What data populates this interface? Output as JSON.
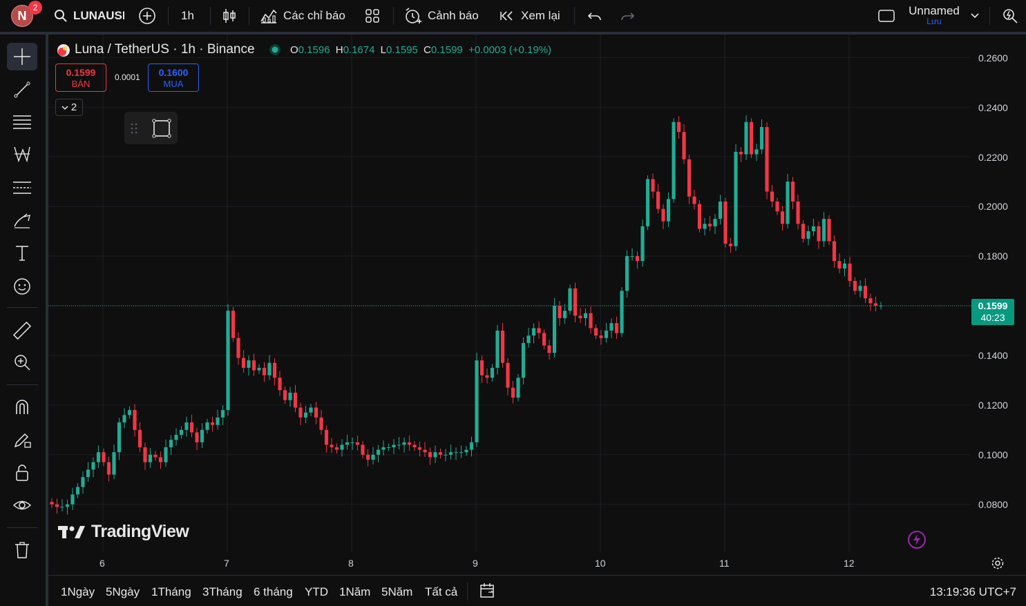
{
  "topbar": {
    "avatar_letter": "N",
    "notification_count": "2",
    "symbol": "LUNAUSDT",
    "interval": "1h",
    "indicators_label": "Các chỉ báo",
    "alerts_label": "Cảnh báo",
    "replay_label": "Xem lại",
    "layout_name": "Unnamed",
    "save_label": "Lưu"
  },
  "legend": {
    "title": "Luna / TetherUS · 1h · Binance",
    "o_label": "O",
    "o": "0.1596",
    "h_label": "H",
    "h": "0.1674",
    "l_label": "L",
    "l": "0.1595",
    "c_label": "C",
    "c": "0.1599",
    "change": "+0.0003 (+0.19%)",
    "sell_price": "0.1599",
    "sell_label": "BÁN",
    "spread": "0.0001",
    "buy_price": "0.1600",
    "buy_label": "MUA",
    "indicators_count": "2"
  },
  "watermark": "TradingView",
  "price_axis": [
    "0.2600",
    "0.2400",
    "0.2200",
    "0.2000",
    "0.1800",
    "0.1400",
    "0.1200",
    "0.1000",
    "0.0800"
  ],
  "last_price": {
    "price": "0.1599",
    "countdown": "40:23"
  },
  "time_axis": [
    "6",
    "7",
    "8",
    "9",
    "10",
    "11",
    "12"
  ],
  "bottombar": {
    "ranges": [
      "1Ngày",
      "5Ngày",
      "1Tháng",
      "3Tháng",
      "6 tháng",
      "YTD",
      "1Năm",
      "5Năm",
      "Tất cả"
    ],
    "clock": "13:19:36 UTC+7"
  },
  "colors": {
    "up": "#22ab94",
    "down": "#f23645",
    "background": "#0f0f0f"
  },
  "chart_data": {
    "type": "candlestick",
    "title": "Luna / TetherUS · 1h · Binance",
    "ylim": [
      0.07,
      0.26
    ],
    "x_ticks": [
      "6",
      "7",
      "8",
      "9",
      "10",
      "11",
      "12"
    ],
    "series": [
      {
        "name": "LUNAUSDT",
        "closes": [
          0.08,
          0.079,
          0.079,
          0.08,
          0.084,
          0.087,
          0.091,
          0.094,
          0.097,
          0.101,
          0.097,
          0.092,
          0.101,
          0.113,
          0.116,
          0.118,
          0.11,
          0.103,
          0.097,
          0.1,
          0.099,
          0.097,
          0.103,
          0.106,
          0.108,
          0.11,
          0.113,
          0.109,
          0.105,
          0.11,
          0.113,
          0.112,
          0.115,
          0.118,
          0.158,
          0.147,
          0.139,
          0.135,
          0.138,
          0.134,
          0.135,
          0.132,
          0.137,
          0.131,
          0.126,
          0.122,
          0.125,
          0.119,
          0.115,
          0.117,
          0.119,
          0.115,
          0.11,
          0.104,
          0.103,
          0.102,
          0.104,
          0.105,
          0.105,
          0.104,
          0.1,
          0.098,
          0.1,
          0.102,
          0.103,
          0.103,
          0.104,
          0.104,
          0.105,
          0.104,
          0.103,
          0.102,
          0.101,
          0.099,
          0.101,
          0.1,
          0.1,
          0.101,
          0.101,
          0.101,
          0.102,
          0.105,
          0.138,
          0.132,
          0.131,
          0.135,
          0.15,
          0.137,
          0.127,
          0.123,
          0.131,
          0.145,
          0.148,
          0.151,
          0.149,
          0.144,
          0.141,
          0.16,
          0.155,
          0.158,
          0.167,
          0.156,
          0.155,
          0.157,
          0.151,
          0.148,
          0.147,
          0.15,
          0.153,
          0.149,
          0.166,
          0.18,
          0.18,
          0.178,
          0.192,
          0.211,
          0.206,
          0.199,
          0.194,
          0.203,
          0.234,
          0.23,
          0.219,
          0.204,
          0.201,
          0.191,
          0.193,
          0.192,
          0.195,
          0.202,
          0.185,
          0.184,
          0.222,
          0.221,
          0.234,
          0.221,
          0.223,
          0.232,
          0.206,
          0.202,
          0.198,
          0.193,
          0.21,
          0.202,
          0.193,
          0.187,
          0.19,
          0.192,
          0.186,
          0.195,
          0.186,
          0.178,
          0.175,
          0.177,
          0.17,
          0.166,
          0.168,
          0.163,
          0.161,
          0.16,
          0.16
        ]
      }
    ]
  }
}
